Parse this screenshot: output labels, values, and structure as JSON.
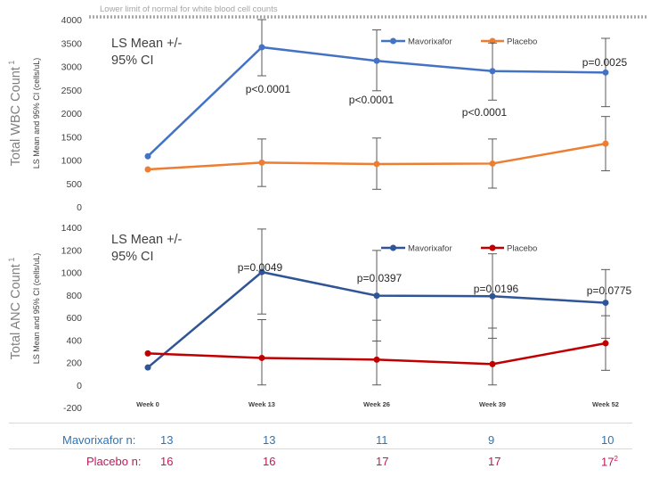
{
  "limit_label": "Lower limit of normal for white blood cell counts",
  "x_categories": [
    "Week 0",
    "Week 13",
    "Week 26",
    "Week 39",
    "Week 52"
  ],
  "chart_data": [
    {
      "type": "line",
      "ylabel": "Total WBC Count",
      "ylabel_sup": "1",
      "ylabel_sub": "LS Mean and 95% CI (cells/uL)",
      "ylim": [
        0,
        4000
      ],
      "yticks": [
        "0",
        "500",
        "1000",
        "1500",
        "2000",
        "2500",
        "3000",
        "3500",
        "4000"
      ],
      "reference_line": 4000,
      "annotation": [
        "LS Mean +/-",
        "95% CI"
      ],
      "categories": [
        "Week 0",
        "Week 13",
        "Week 26",
        "Week 39",
        "Week 52"
      ],
      "series": [
        {
          "name": "Mavorixafor",
          "color": "#4472c4",
          "values": [
            1080,
            3410,
            3120,
            2900,
            2870
          ],
          "ci": [
            null,
            [
              2800,
              4000
            ],
            [
              2480,
              3780
            ],
            [
              2280,
              3500
            ],
            [
              2140,
              3600
            ]
          ]
        },
        {
          "name": "Placebo",
          "color": "#ed7d31",
          "values": [
            800,
            945,
            915,
            925,
            1350
          ],
          "ci": [
            null,
            [
              435,
              1450
            ],
            [
              375,
              1470
            ],
            [
              400,
              1450
            ],
            [
              770,
              1930
            ]
          ]
        }
      ],
      "p_values": [
        null,
        "p<0.0001",
        "p<0.0001",
        "p<0.0001",
        "p=0.0025"
      ]
    },
    {
      "type": "line",
      "ylabel": "Total ANC Count",
      "ylabel_sup": "1",
      "ylabel_sub": "LS Mean and 95% CI (cells/uL)",
      "ylim": [
        -200,
        1400
      ],
      "yticks": [
        "-200",
        "0",
        "200",
        "400",
        "600",
        "800",
        "1000",
        "1200",
        "1400"
      ],
      "annotation": [
        "LS Mean +/-",
        "95% CI"
      ],
      "categories": [
        "Week 0",
        "Week 13",
        "Week 26",
        "Week 39",
        "Week 52"
      ],
      "series": [
        {
          "name": "Mavorixafor",
          "color": "#2f5597",
          "values": [
            155,
            1003,
            793,
            788,
            730
          ],
          "ci": [
            null,
            [
              630,
              1385
            ],
            [
              390,
              1195
            ],
            [
              415,
              1165
            ],
            [
              415,
              1025
            ]
          ]
        },
        {
          "name": "Placebo",
          "color": "#c00000",
          "values": [
            280,
            240,
            225,
            185,
            370
          ],
          "ci": [
            null,
            [
              0,
              580
            ],
            [
              0,
              575
            ],
            [
              0,
              505
            ],
            [
              130,
              615
            ]
          ]
        }
      ],
      "p_values": [
        null,
        "p=0.0049",
        "p=0.0397",
        "p=0.0196",
        "p=0.0775"
      ]
    }
  ],
  "n_table": {
    "mavorixafor": {
      "label": "Mavorixafor n:",
      "color": "#2e75b6",
      "values": [
        "13",
        "13",
        "11",
        "9",
        "10"
      ]
    },
    "placebo": {
      "label": "Placebo n:",
      "color": "#c0185a",
      "values": [
        "16",
        "16",
        "17",
        "17",
        "17"
      ],
      "last_sup": "2"
    }
  }
}
